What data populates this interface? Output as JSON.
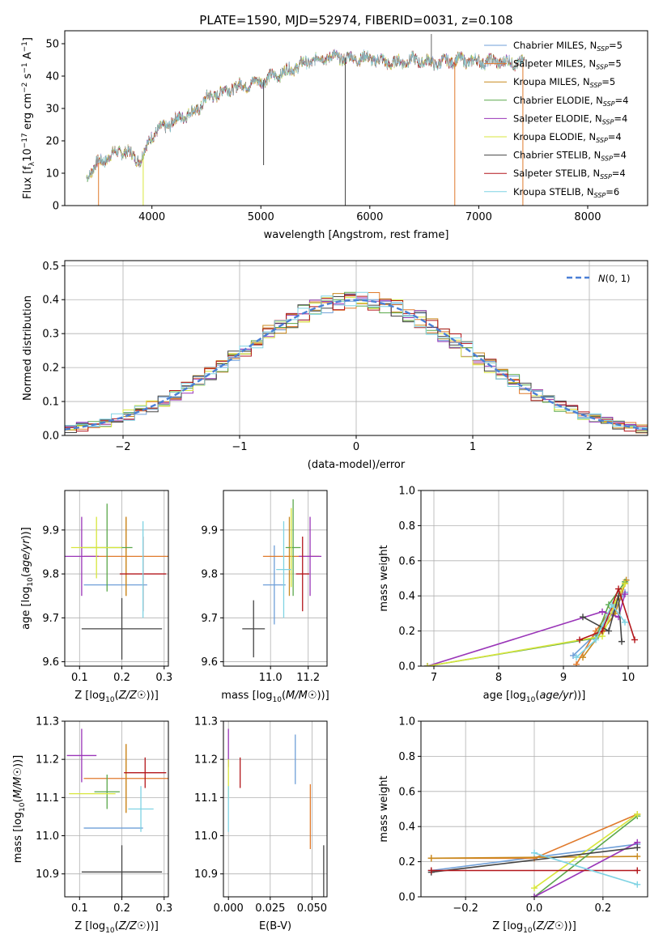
{
  "figure": {
    "title": "PLATE=1590, MJD=52974, FIBERID=0031, z=0.108"
  },
  "series_colors": {
    "Chabrier MILES": "#6f9fd8",
    "Salpeter MILES": "#e07a2c",
    "Kroupa MILES": "#c98a1e",
    "Chabrier ELODIE": "#5aa84a",
    "Salpeter ELODIE": "#9a35b8",
    "Kroupa ELODIE": "#d8e63c",
    "Chabrier STELIB": "#444444",
    "Salpeter STELIB": "#b3161b",
    "Kroupa STELIB": "#7fd3e3"
  },
  "chart_data": [
    {
      "id": "spectrum",
      "type": "line",
      "title": "PLATE=1590, MJD=52974, FIBERID=0031, z=0.108",
      "xlabel": "wavelength [Angstrom, rest frame]",
      "ylabel_parts": [
        "Flux [f",
        "λ",
        "10",
        "−17",
        " erg cm",
        "−2",
        " s",
        "−1",
        " A",
        "−1",
        "]"
      ],
      "xlim": [
        3200,
        8550
      ],
      "ylim": [
        0,
        54
      ],
      "xticks": [
        4000,
        5000,
        6000,
        7000,
        8000
      ],
      "yticks": [
        0,
        10,
        20,
        30,
        40,
        50
      ],
      "grid": false,
      "legend_position": "upper right",
      "legend": [
        {
          "name": "Chabrier MILES",
          "nssp": "5"
        },
        {
          "name": "Salpeter MILES",
          "nssp": "5"
        },
        {
          "name": "Kroupa MILES",
          "nssp": "5"
        },
        {
          "name": "Chabrier ELODIE",
          "nssp": "4"
        },
        {
          "name": "Salpeter ELODIE",
          "nssp": "4"
        },
        {
          "name": "Kroupa ELODIE",
          "nssp": "4"
        },
        {
          "name": "Chabrier STELIB",
          "nssp": "4"
        },
        {
          "name": "Salpeter STELIB",
          "nssp": "4"
        },
        {
          "name": "Kroupa STELIB",
          "nssp": "6"
        }
      ],
      "observed_range": [
        3400,
        7420
      ],
      "continuum": {
        "x": [
          3400,
          3500,
          3600,
          3700,
          3800,
          3900,
          4000,
          4100,
          4200,
          4300,
          4400,
          4500,
          4700,
          5000,
          5200,
          5400,
          5600,
          5800,
          6000,
          6200,
          6400,
          6600,
          6800,
          7000,
          7200,
          7400
        ],
        "y": [
          9,
          13,
          15,
          17,
          16,
          14,
          22,
          24,
          26,
          28,
          29,
          33,
          36,
          38.5,
          41,
          44,
          46,
          45.5,
          45.5,
          44,
          45,
          44,
          45,
          44.5,
          44.5,
          44
        ]
      },
      "dropouts": [
        {
          "x": 3510,
          "depth": 0,
          "series": "Salpeter MILES"
        },
        {
          "x": 3920,
          "depth": 0,
          "series": "Kroupa ELODIE"
        },
        {
          "x": 5025,
          "depth": 12.5,
          "series": "Chabrier STELIB"
        },
        {
          "x": 5775,
          "depth": 0,
          "series": "Chabrier STELIB"
        },
        {
          "x": 6780,
          "depth": 0,
          "series": "Salpeter MILES"
        },
        {
          "x": 7405,
          "depth": 0,
          "series": "Salpeter MILES"
        }
      ]
    },
    {
      "id": "residuals",
      "type": "histogram",
      "xlabel": "(data-model)/error",
      "ylabel": "Normed distribution",
      "xlim": [
        -2.5,
        2.5
      ],
      "ylim": [
        0,
        0.515
      ],
      "xticks": [
        -2,
        -1,
        0,
        1,
        2
      ],
      "yticks": [
        0.0,
        0.1,
        0.2,
        0.3,
        0.4,
        0.5
      ],
      "grid": true,
      "legend_position": "upper right",
      "reference_curve": {
        "label": "N(0,1)",
        "mean": 0,
        "sigma": 1,
        "color": "#4a7fd6"
      },
      "bin_width": 0.1
    },
    {
      "id": "age-vs-Z",
      "type": "scatter",
      "xlabel": "Z [log10(Z/Z☉)]",
      "ylabel": "age  [log10(age/yr)]",
      "xlim": [
        0.065,
        0.31
      ],
      "ylim": [
        9.59,
        9.99
      ],
      "xticks": [
        0.1,
        0.2,
        0.3
      ],
      "yticks": [
        9.6,
        9.7,
        9.8,
        9.9
      ],
      "grid": true,
      "points": [
        {
          "series": "Chabrier MILES",
          "x": 0.185,
          "y": 9.775,
          "xerr": 0.075,
          "yerr": 0
        },
        {
          "series": "Salpeter MILES",
          "x": 0.21,
          "y": 9.84,
          "xerr": 0.1,
          "yerr": 0.09
        },
        {
          "series": "Kroupa MILES",
          "x": 0.21,
          "y": 9.84,
          "xerr": 0.0,
          "yerr": 0.09
        },
        {
          "series": "Chabrier ELODIE",
          "x": 0.165,
          "y": 9.86,
          "xerr": 0.06,
          "yerr": 0.1
        },
        {
          "series": "Salpeter ELODIE",
          "x": 0.105,
          "y": 9.84,
          "xerr": 0.04,
          "yerr": 0.09
        },
        {
          "series": "Kroupa ELODIE",
          "x": 0.14,
          "y": 9.86,
          "xerr": 0.06,
          "yerr": 0.07
        },
        {
          "series": "Chabrier STELIB",
          "x": 0.2,
          "y": 9.675,
          "xerr": 0.095,
          "yerr": 0.07
        },
        {
          "series": "Salpeter STELIB",
          "x": 0.25,
          "y": 9.8,
          "xerr": 0.055,
          "yerr": 0.085
        },
        {
          "series": "Kroupa STELIB",
          "x": 0.25,
          "y": 9.81,
          "xerr": 0.0,
          "yerr": 0.11
        }
      ]
    },
    {
      "id": "age-vs-mass",
      "type": "scatter",
      "xlabel": "mass [log10(M/M☉)]",
      "ylabel": "",
      "xlim": [
        10.75,
        11.3
      ],
      "ylim": [
        9.59,
        9.99
      ],
      "xticks": [
        11.0,
        11.2
      ],
      "yticks": [
        9.6,
        9.7,
        9.8,
        9.9
      ],
      "grid": true,
      "points": [
        {
          "series": "Chabrier MILES",
          "x": 11.02,
          "y": 9.775,
          "xerr": 0.06,
          "yerr": 0.09
        },
        {
          "series": "Salpeter MILES",
          "x": 11.11,
          "y": 9.84,
          "xerr": 0.15,
          "yerr": 0.0
        },
        {
          "series": "Kroupa MILES",
          "x": 11.1,
          "y": 9.84,
          "xerr": 0.0,
          "yerr": 0.09
        },
        {
          "series": "Chabrier ELODIE",
          "x": 11.12,
          "y": 9.86,
          "xerr": 0.04,
          "yerr": 0.11
        },
        {
          "series": "Salpeter ELODIE",
          "x": 11.21,
          "y": 9.84,
          "xerr": 0.06,
          "yerr": 0.09
        },
        {
          "series": "Kroupa ELODIE",
          "x": 11.11,
          "y": 9.86,
          "xerr": 0.0,
          "yerr": 0.09
        },
        {
          "series": "Chabrier STELIB",
          "x": 10.91,
          "y": 9.675,
          "xerr": 0.06,
          "yerr": 0.065
        },
        {
          "series": "Salpeter STELIB",
          "x": 11.17,
          "y": 9.8,
          "xerr": 0.035,
          "yerr": 0.085
        },
        {
          "series": "Kroupa STELIB",
          "x": 11.07,
          "y": 9.81,
          "xerr": 0.04,
          "yerr": 0.11
        }
      ]
    },
    {
      "id": "weight-vs-age",
      "type": "line",
      "xlabel": "age  [log10(age/yr)]",
      "ylabel": "mass weight",
      "xlim": [
        6.8,
        10.3
      ],
      "ylim": [
        0,
        1
      ],
      "xticks": [
        7,
        8,
        9,
        10
      ],
      "yticks": [
        0.0,
        0.2,
        0.4,
        0.6,
        0.8,
        1.0
      ],
      "grid": true,
      "series": [
        {
          "name": "Chabrier MILES",
          "x": [
            9.15,
            9.55,
            9.75,
            9.95
          ],
          "y": [
            0.06,
            0.2,
            0.3,
            0.42
          ]
        },
        {
          "name": "Salpeter MILES",
          "x": [
            9.2,
            9.5,
            9.75,
            9.95
          ],
          "y": [
            0.01,
            0.2,
            0.33,
            0.47
          ]
        },
        {
          "name": "Kroupa MILES",
          "x": [
            9.3,
            9.6,
            9.8,
            9.97
          ],
          "y": [
            0.05,
            0.2,
            0.3,
            0.49
          ]
        },
        {
          "name": "Chabrier ELODIE",
          "x": [
            6.9,
            9.5,
            9.7,
            9.95
          ],
          "y": [
            0.0,
            0.16,
            0.35,
            0.48
          ]
        },
        {
          "name": "Salpeter ELODIE",
          "x": [
            6.9,
            9.6,
            9.85,
            9.95
          ],
          "y": [
            0.0,
            0.31,
            0.28,
            0.41
          ]
        },
        {
          "name": "Kroupa ELODIE",
          "x": [
            6.9,
            9.6,
            9.8,
            9.95
          ],
          "y": [
            0.0,
            0.17,
            0.36,
            0.47
          ]
        },
        {
          "name": "Chabrier STELIB",
          "x": [
            9.3,
            9.7,
            9.85,
            9.9
          ],
          "y": [
            0.28,
            0.2,
            0.4,
            0.14
          ]
        },
        {
          "name": "Salpeter STELIB",
          "x": [
            9.25,
            9.6,
            9.85,
            10.1
          ],
          "y": [
            0.15,
            0.2,
            0.44,
            0.15
          ]
        },
        {
          "name": "Kroupa STELIB",
          "x": [
            9.2,
            9.5,
            9.75,
            9.95
          ],
          "y": [
            0.05,
            0.15,
            0.35,
            0.25
          ]
        }
      ]
    },
    {
      "id": "mass-vs-Z",
      "type": "scatter",
      "xlabel": "Z [log10(Z/Z☉)]",
      "ylabel": "mass [log10(M/M☉)]",
      "xlim": [
        0.065,
        0.31
      ],
      "ylim": [
        10.84,
        11.3
      ],
      "xticks": [
        0.1,
        0.2,
        0.3
      ],
      "yticks": [
        10.9,
        11.0,
        11.1,
        11.2,
        11.3
      ],
      "grid": true,
      "points": [
        {
          "series": "Chabrier MILES",
          "x": 0.18,
          "y": 11.02,
          "xerr": 0.07,
          "yerr": 0.0
        },
        {
          "series": "Salpeter MILES",
          "x": 0.21,
          "y": 11.15,
          "xerr": 0.1,
          "yerr": 0.09
        },
        {
          "series": "Kroupa MILES",
          "x": 0.21,
          "y": 11.15,
          "xerr": 0.0,
          "yerr": 0.09
        },
        {
          "series": "Chabrier ELODIE",
          "x": 0.165,
          "y": 11.115,
          "xerr": 0.03,
          "yerr": 0.045
        },
        {
          "series": "Salpeter ELODIE",
          "x": 0.105,
          "y": 11.21,
          "xerr": 0.035,
          "yerr": 0.07
        },
        {
          "series": "Kroupa ELODIE",
          "x": 0.13,
          "y": 11.11,
          "xerr": 0.055,
          "yerr": 0.0
        },
        {
          "series": "Chabrier STELIB",
          "x": 0.2,
          "y": 10.905,
          "xerr": 0.095,
          "yerr": 0.07
        },
        {
          "series": "Salpeter STELIB",
          "x": 0.255,
          "y": 11.165,
          "xerr": 0.05,
          "yerr": 0.04
        },
        {
          "series": "Kroupa STELIB",
          "x": 0.245,
          "y": 11.07,
          "xerr": 0.03,
          "yerr": 0.06
        }
      ]
    },
    {
      "id": "mass-vs-ebv",
      "type": "scatter",
      "xlabel": "E(B-V)",
      "ylabel": "",
      "xlim": [
        -0.003,
        0.059
      ],
      "ylim": [
        10.84,
        11.3
      ],
      "xticks": [
        0.0,
        0.025,
        0.05
      ],
      "ytick_values": [
        10.9,
        11.0,
        11.1,
        11.2,
        11.3
      ],
      "grid": true,
      "points": [
        {
          "series": "Salpeter ELODIE",
          "x": 0.0,
          "y": 11.23,
          "xerr": 0.0,
          "yerr": 0.05
        },
        {
          "series": "Kroupa ELODIE",
          "x": 0.0,
          "y": 11.15,
          "xerr": 0.0,
          "yerr": 0.05
        },
        {
          "series": "Kroupa STELIB",
          "x": 0.0,
          "y": 11.07,
          "xerr": 0.0,
          "yerr": 0.06
        },
        {
          "series": "Salpeter STELIB",
          "x": 0.007,
          "y": 11.165,
          "xerr": 0.0,
          "yerr": 0.04
        },
        {
          "series": "Chabrier MILES",
          "x": 0.04,
          "y": 11.2,
          "xerr": 0.0,
          "yerr": 0.065
        },
        {
          "series": "Salpeter MILES",
          "x": 0.049,
          "y": 11.05,
          "xerr": 0.0,
          "yerr": 0.085
        },
        {
          "series": "Chabrier STELIB",
          "x": 0.057,
          "y": 10.905,
          "xerr": 0.0,
          "yerr": 0.07
        }
      ]
    },
    {
      "id": "weight-vs-Z",
      "type": "line",
      "xlabel": "Z [log10(Z/Z☉)]",
      "ylabel": "mass weight",
      "xlim": [
        -0.33,
        0.33
      ],
      "ylim": [
        0,
        1
      ],
      "xticks": [
        -0.2,
        0.0,
        0.2
      ],
      "yticks": [
        0.0,
        0.2,
        0.4,
        0.6,
        0.8,
        1.0
      ],
      "grid": true,
      "series": [
        {
          "name": "Chabrier MILES",
          "x": [
            -0.3,
            0.3
          ],
          "y": [
            0.15,
            0.3
          ]
        },
        {
          "name": "Salpeter MILES",
          "x": [
            -0.3,
            0.0,
            0.3
          ],
          "y": [
            0.22,
            0.22,
            0.47
          ]
        },
        {
          "name": "Kroupa MILES",
          "x": [
            -0.3,
            0.3
          ],
          "y": [
            0.22,
            0.23
          ]
        },
        {
          "name": "Chabrier ELODIE",
          "x": [
            0.0,
            0.3
          ],
          "y": [
            0.0,
            0.46
          ]
        },
        {
          "name": "Salpeter ELODIE",
          "x": [
            0.0,
            0.3
          ],
          "y": [
            0.0,
            0.31
          ]
        },
        {
          "name": "Kroupa ELODIE",
          "x": [
            0.0,
            0.3
          ],
          "y": [
            0.05,
            0.47
          ]
        },
        {
          "name": "Chabrier STELIB",
          "x": [
            -0.3,
            0.3
          ],
          "y": [
            0.14,
            0.28
          ]
        },
        {
          "name": "Salpeter STELIB",
          "x": [
            -0.3,
            0.3
          ],
          "y": [
            0.15,
            0.15
          ]
        },
        {
          "name": "Kroupa STELIB",
          "x": [
            0.0,
            0.3
          ],
          "y": [
            0.25,
            0.07
          ]
        }
      ]
    }
  ]
}
